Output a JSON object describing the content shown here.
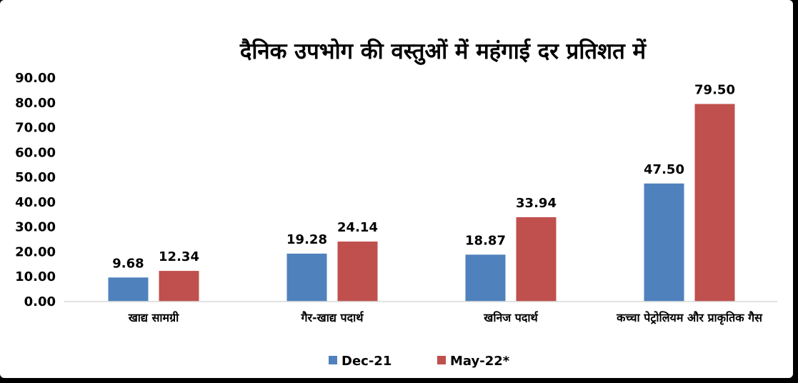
{
  "chart_data": {
    "type": "bar",
    "title": "दैनिक उपभोग की वस्तुओं में महंगाई दर प्रतिशत में",
    "categories": [
      "खाद्य सामग्री",
      "गैर-खाद्य पदार्थ",
      "खनिज पदार्थ",
      "कच्चा पेट्रोलियम और प्राकृतिक गैस"
    ],
    "series": [
      {
        "name": "Dec-21",
        "values": [
          9.68,
          19.28,
          18.87,
          47.5
        ],
        "labels": [
          "9.68",
          "19.28",
          "18.87",
          "47.50"
        ],
        "color": "#4F81BD"
      },
      {
        "name": "May-22*",
        "values": [
          12.34,
          24.14,
          33.94,
          79.5
        ],
        "labels": [
          "12.34",
          "24.14",
          "33.94",
          "79.50"
        ],
        "color": "#C0504D"
      }
    ],
    "y_ticks": [
      "0.00",
      "10.00",
      "20.00",
      "30.00",
      "40.00",
      "50.00",
      "60.00",
      "70.00",
      "80.00",
      "90.00"
    ],
    "ylim": [
      0,
      90
    ],
    "grid": false,
    "legend_position": "bottom"
  }
}
